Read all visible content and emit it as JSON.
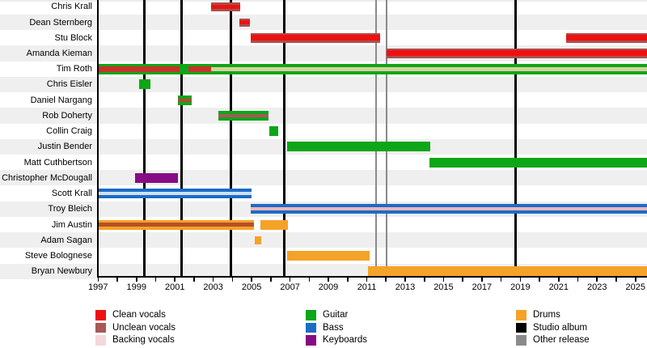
{
  "chart_data": {
    "type": "gantt-timeline",
    "description": "Band members timeline chart",
    "x_axis": {
      "start": 1997,
      "end": 2025.6,
      "ticks": [
        1997,
        1998,
        1999,
        2000,
        2001,
        2002,
        2003,
        2004,
        2005,
        2006,
        2007,
        2008,
        2009,
        2010,
        2011,
        2012,
        2013,
        2014,
        2015,
        2016,
        2017,
        2018,
        2019,
        2020,
        2021,
        2022,
        2023,
        2024,
        2025
      ],
      "labels": [
        1997,
        1999,
        2001,
        2003,
        2005,
        2007,
        2009,
        2011,
        2013,
        2015,
        2017,
        2019,
        2021,
        2023,
        2025
      ]
    },
    "members": [
      {
        "name": "Chris Krall",
        "segments": [
          {
            "role": "unclean_vocals",
            "from": 2002.9,
            "to": 2004.4,
            "color": "#a85050",
            "h": 11
          },
          {
            "role": "clean_vocals",
            "from": 2002.9,
            "to": 2004.4,
            "color": "#ee1111",
            "h": 5
          }
        ]
      },
      {
        "name": "Dean Sternberg",
        "segments": [
          {
            "role": "unclean_vocals",
            "from": 2004.35,
            "to": 2004.9,
            "color": "#a85050",
            "h": 10
          },
          {
            "role": "clean_vocals",
            "from": 2004.35,
            "to": 2004.9,
            "color": "#ee1111",
            "h": 5
          }
        ]
      },
      {
        "name": "Stu Block",
        "segments": [
          {
            "role": "unclean_vocals",
            "from": 2004.95,
            "to": 2011.7,
            "color": "#b04c4c",
            "h": 12
          },
          {
            "role": "clean_vocals",
            "from": 2004.95,
            "to": 2011.7,
            "color": "#ee1111",
            "h": 7
          },
          {
            "role": "unclean_vocals",
            "from": 2021.4,
            "to": 2025.6,
            "color": "#b04c4c",
            "h": 12
          },
          {
            "role": "clean_vocals",
            "from": 2021.4,
            "to": 2025.6,
            "color": "#ee1111",
            "h": 7
          }
        ]
      },
      {
        "name": "Amanda Kieman",
        "segments": [
          {
            "role": "unclean_vocals",
            "from": 2012.05,
            "to": 2025.6,
            "color": "#b04c4c",
            "h": 12
          },
          {
            "role": "clean_vocals",
            "from": 2012.05,
            "to": 2025.6,
            "color": "#ee1111",
            "h": 7
          }
        ]
      },
      {
        "name": "Tim Roth",
        "segments": [
          {
            "role": "guitar",
            "from": 1997,
            "to": 2025.6,
            "color": "#0ca616",
            "h": 13
          },
          {
            "role": "clean_vocals",
            "from": 1997,
            "to": 2001.25,
            "color": "#c7342a",
            "h": 7
          },
          {
            "role": "clean_vocals",
            "from": 2001.7,
            "to": 2002.9,
            "color": "#c7342a",
            "h": 7
          },
          {
            "role": "backing_vocals",
            "from": 2002.9,
            "to": 2025.6,
            "color": "#dbcf9e",
            "h": 5
          }
        ]
      },
      {
        "name": "Chris Eisler",
        "segments": [
          {
            "role": "guitar",
            "from": 1999.15,
            "to": 1999.73,
            "color": "#0ca616",
            "h": 12
          }
        ]
      },
      {
        "name": "Daniel Nargang",
        "segments": [
          {
            "role": "guitar",
            "from": 2001.16,
            "to": 2001.88,
            "color": "#0ca616",
            "h": 12
          },
          {
            "role": "unclean_vocals",
            "from": 2001.16,
            "to": 2001.88,
            "color": "#b8453a",
            "h": 4
          }
        ]
      },
      {
        "name": "Rob Doherty",
        "segments": [
          {
            "role": "guitar",
            "from": 2003.27,
            "to": 2005.88,
            "color": "#0ca616",
            "h": 12
          },
          {
            "role": "unclean_vocals",
            "from": 2003.27,
            "to": 2005.88,
            "color": "#a85858",
            "h": 4
          }
        ]
      },
      {
        "name": "Collin Craig",
        "segments": [
          {
            "role": "guitar",
            "from": 2005.92,
            "to": 2006.39,
            "color": "#0ca616",
            "h": 12
          }
        ]
      },
      {
        "name": "Justin Bender",
        "segments": [
          {
            "role": "guitar",
            "from": 2006.85,
            "to": 2014.3,
            "color": "#0ca616",
            "h": 12
          }
        ]
      },
      {
        "name": "Matt Cuthbertson",
        "segments": [
          {
            "role": "guitar",
            "from": 2014.27,
            "to": 2025.6,
            "color": "#0ca616",
            "h": 12
          }
        ]
      },
      {
        "name": "Christopher McDougall",
        "segments": [
          {
            "role": "keyboards",
            "from": 1998.93,
            "to": 2001.16,
            "color": "#850c85",
            "h": 12
          }
        ]
      },
      {
        "name": "Scott Krall",
        "segments": [
          {
            "role": "bass",
            "from": 1997,
            "to": 2005.0,
            "color": "#1b6cc7",
            "h": 12
          },
          {
            "role": "backing_vocals",
            "from": 1997,
            "to": 2005.0,
            "color": "#cfe0f2",
            "h": 4
          }
        ]
      },
      {
        "name": "Troy Bleich",
        "segments": [
          {
            "role": "bass",
            "from": 2004.95,
            "to": 2025.6,
            "color": "#1b6cc7",
            "h": 12
          },
          {
            "role": "backing_vocals",
            "from": 2004.95,
            "to": 2025.6,
            "color": "#f2b6b6",
            "h": 4
          }
        ]
      },
      {
        "name": "Jim Austin",
        "segments": [
          {
            "role": "drums",
            "from": 1997,
            "to": 2005.12,
            "color": "#f5a229",
            "h": 12
          },
          {
            "role": "unclean_vocals",
            "from": 1997,
            "to": 2005.12,
            "color": "#b84f28",
            "h": 5
          },
          {
            "role": "drums",
            "from": 2005.46,
            "to": 2006.89,
            "color": "#f5a229",
            "h": 12
          }
        ]
      },
      {
        "name": "Adam Sagan",
        "segments": [
          {
            "role": "drums",
            "from": 2005.16,
            "to": 2005.5,
            "color": "#f5a229",
            "h": 10
          }
        ]
      },
      {
        "name": "Steve Bolognese",
        "segments": [
          {
            "role": "drums",
            "from": 2006.85,
            "to": 2011.15,
            "color": "#f5a229",
            "h": 12
          }
        ]
      },
      {
        "name": "Bryan Newbury",
        "segments": [
          {
            "role": "drums",
            "from": 2011.05,
            "to": 2025.6,
            "color": "#f5a229",
            "h": 12
          }
        ]
      }
    ],
    "events": {
      "studio_albums": [
        1999.39,
        2001.33,
        2003.94,
        2006.72,
        2018.77
      ],
      "other_releases": [
        2011.48,
        2012.05
      ]
    },
    "legend": {
      "columns": [
        {
          "items": [
            {
              "label": "Clean vocals",
              "color": "#ee1111"
            },
            {
              "label": "Unclean vocals",
              "color": "#a85858"
            },
            {
              "label": "Backing vocals",
              "color": "#f6d7da"
            }
          ]
        },
        {
          "items": [
            {
              "label": "Guitar",
              "color": "#0ca616"
            },
            {
              "label": "Bass",
              "color": "#1b6cc7"
            },
            {
              "label": "Keyboards",
              "color": "#850c85"
            }
          ]
        },
        {
          "items": [
            {
              "label": "Drums",
              "color": "#f5a229"
            },
            {
              "label": "Studio album",
              "color": "#000000"
            },
            {
              "label": "Other release",
              "color": "#8a8a8a"
            }
          ]
        }
      ]
    },
    "colors": {
      "clean_vocals": "#ee1111",
      "unclean_vocals": "#a85858",
      "backing_vocals": "#f6d7da",
      "guitar": "#0ca616",
      "bass": "#1b6cc7",
      "keyboards": "#850c85",
      "drums": "#f5a229",
      "studio_album": "#000000",
      "other_release": "#8a8a8a"
    }
  }
}
